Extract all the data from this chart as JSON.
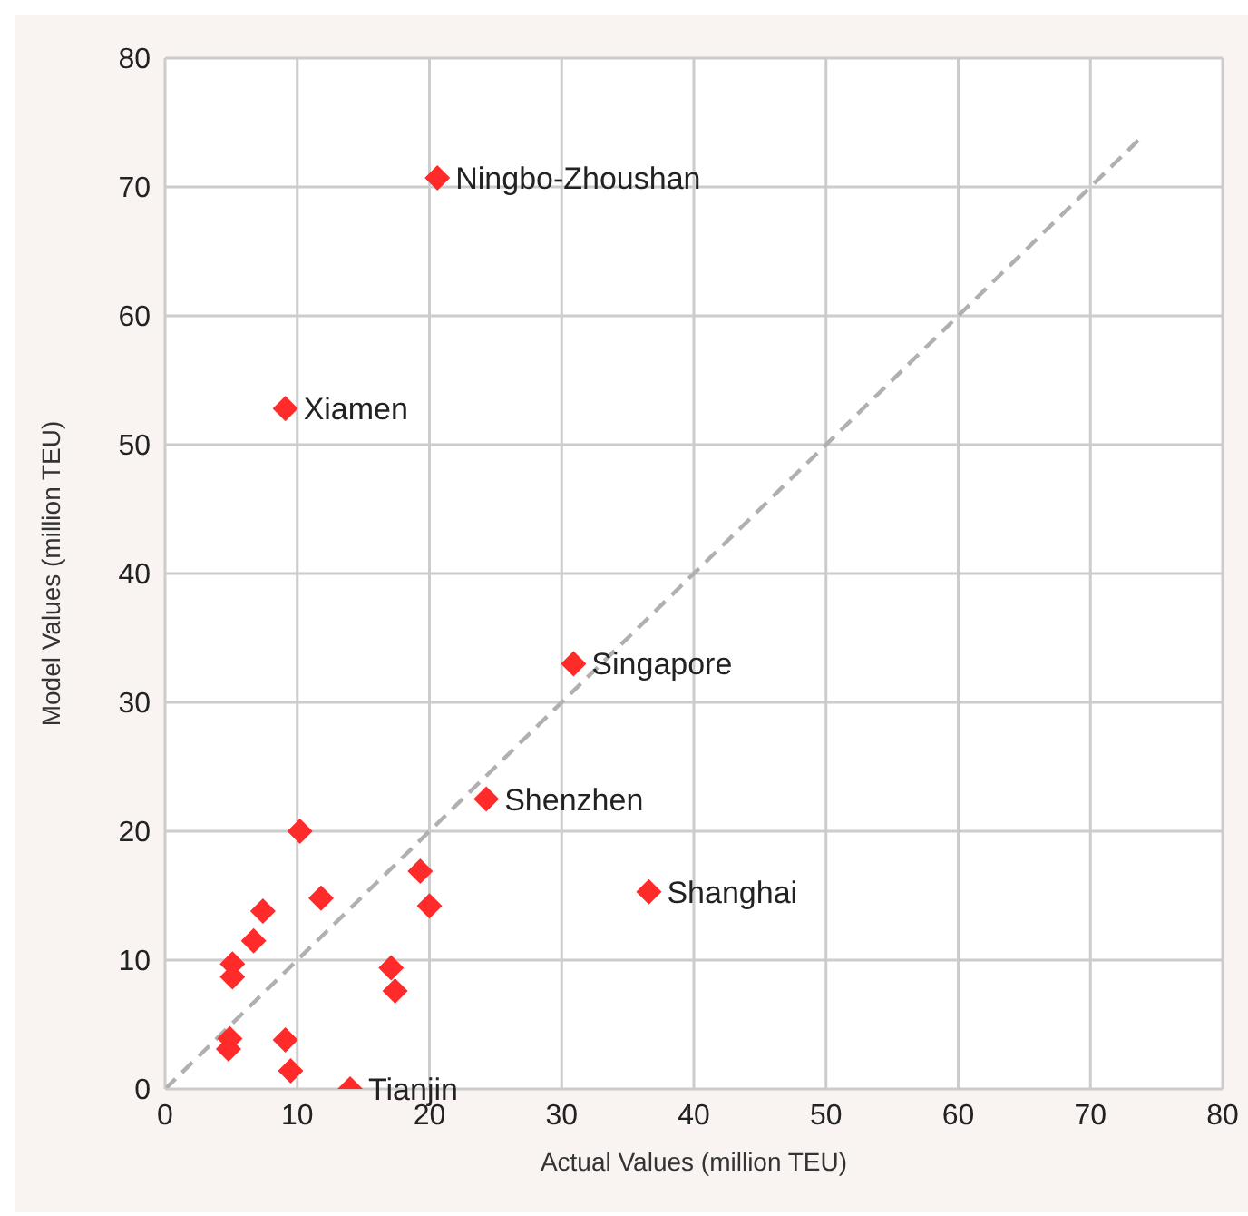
{
  "chart_data": {
    "type": "scatter",
    "xlabel": "Actual Values (million TEU)",
    "ylabel": "Model Values (million TEU)",
    "xlim": [
      0,
      80
    ],
    "ylim": [
      0,
      80
    ],
    "xticks": [
      0,
      10,
      20,
      30,
      40,
      50,
      60,
      70,
      80
    ],
    "yticks": [
      0,
      10,
      20,
      30,
      40,
      50,
      60,
      70,
      80
    ],
    "grid": true,
    "legend": false,
    "marker": "diamond",
    "series": [
      {
        "color": "#ff2a2a",
        "x": [
          20.6,
          9.1,
          30.9,
          24.3,
          36.6,
          14.0,
          10.2,
          11.8,
          7.4,
          6.7,
          5.1,
          5.1,
          19.3,
          20.0,
          17.1,
          17.4,
          4.9,
          4.8,
          9.1,
          9.5
        ],
        "values": [
          70.7,
          52.8,
          33.0,
          22.5,
          15.3,
          0,
          20.0,
          14.8,
          13.8,
          11.5,
          9.7,
          8.7,
          16.9,
          14.2,
          9.4,
          7.6,
          3.9,
          3.1,
          3.8,
          1.4
        ]
      },
      {
        "type": "line",
        "color": "#b0b0b0",
        "line_style": "dashed",
        "marker": "none",
        "x": [
          0,
          74
        ],
        "values": [
          0,
          74
        ]
      }
    ],
    "annotations": [
      {
        "text": "Ningbo-Zhoushan",
        "x": 20.6,
        "y": 70.7
      },
      {
        "text": "Xiamen",
        "x": 9.1,
        "y": 52.8
      },
      {
        "text": "Singapore",
        "x": 30.9,
        "y": 33.0
      },
      {
        "text": "Shenzhen",
        "x": 24.3,
        "y": 22.5
      },
      {
        "text": "Shanghai",
        "x": 36.6,
        "y": 15.3
      },
      {
        "text": "Tianjin",
        "x": 14.0,
        "y": 0
      }
    ]
  }
}
